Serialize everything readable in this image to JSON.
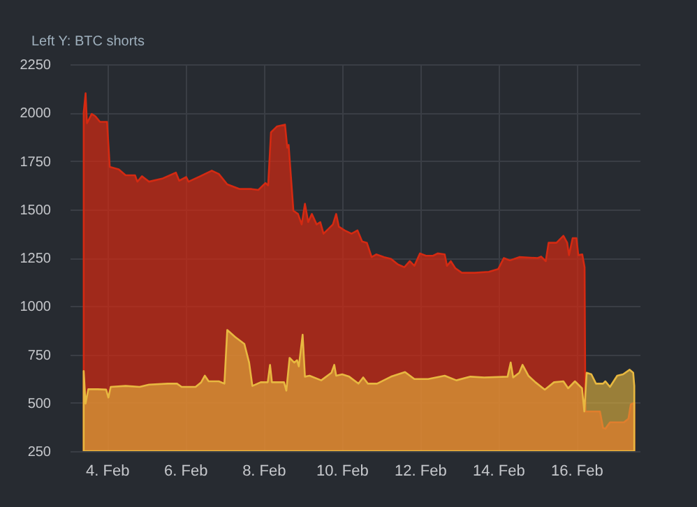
{
  "chart_data": {
    "type": "area",
    "ylabel": "Left Y: BTC shorts",
    "grid": true,
    "xlim": [
      "--02-03T01:10",
      "--02-17T14:50"
    ],
    "xticks": [
      {
        "value": "--02-04",
        "label": "4. Feb"
      },
      {
        "value": "--02-06",
        "label": "6. Feb"
      },
      {
        "value": "--02-08",
        "label": "8. Feb"
      },
      {
        "value": "--02-10",
        "label": "10. Feb"
      },
      {
        "value": "--02-12",
        "label": "12. Feb"
      },
      {
        "value": "--02-14",
        "label": "14. Feb"
      },
      {
        "value": "--02-16",
        "label": "16. Feb"
      }
    ],
    "ylim": [
      250,
      2250
    ],
    "yticks": [
      250,
      500,
      750,
      1000,
      1250,
      1500,
      1750,
      2000,
      2250
    ],
    "series": [
      {
        "color": "#d42a12",
        "x": [
          "--02-03T09:40",
          "--02-03T10:50",
          "--02-03T11:40",
          "--02-03T14:35",
          "--02-03T16:50",
          "--02-03T19:40",
          "--02-04T00:00",
          "--02-04T01:40",
          "--02-04T07:10",
          "--02-04T11:25",
          "--02-04T17:10",
          "--02-04T18:35",
          "--02-04T21:25",
          "--02-05T01:45",
          "--02-05T10:15",
          "--02-05T18:15",
          "--02-05T20:15",
          "--02-06T00:35",
          "--02-06T02:00",
          "--02-06T09:10",
          "--02-06T16:15",
          "--02-06T20:35",
          "--02-07T01:45",
          "--02-07T09:25",
          "--02-07T16:35",
          "--02-07T20:50",
          "--02-08T01:10",
          "--02-08T02:50",
          "--02-08T04:35",
          "--02-08T08:20",
          "--02-08T13:10",
          "--02-08T14:35",
          "--02-08T15:25",
          "--02-08T18:20",
          "--02-08T21:10",
          "--02-08T23:25",
          "--02-09T01:25",
          "--02-09T03:25",
          "--02-09T05:40",
          "--02-09T08:35",
          "--02-09T10:50",
          "--02-09T12:50",
          "--02-09T18:35",
          "--02-09T20:35",
          "--02-09T22:15",
          "--02-10T01:45",
          "--02-10T06:00",
          "--02-10T09:40",
          "--02-10T12:30",
          "--02-10T15:25",
          "--02-10T18:20",
          "--02-10T21:10",
          "--02-11T02:00",
          "--02-11T06:15",
          "--02-11T10:30",
          "--02-11T14:25",
          "--02-11T17:45",
          "--02-11T20:35",
          "--02-12T00:00",
          "--02-12T03:40",
          "--02-12T08:00",
          "--02-12T10:50",
          "--02-12T15:10",
          "--02-12T16:35",
          "--02-12T18:55",
          "--02-12T21:40",
          "--02-13T01:40",
          "--02-13T09:40",
          "--02-13T18:15",
          "--02-14T00:00",
          "--02-14T03:25",
          "--02-14T07:10",
          "--02-14T12:55",
          "--02-15T00:15",
          "--02-15T02:20",
          "--02-15T05:10",
          "--02-15T06:55",
          "--02-15T11:45",
          "--02-15T16:00",
          "--02-15T18:20",
          "--02-15T19:25",
          "--02-15T21:40",
          "--02-16T00:00",
          "--02-16T01:10",
          "--02-16T03:35",
          "--02-16T05:00",
          "--02-16T05:30",
          "--02-16T14:25",
          "--02-16T16:20",
          "--02-16T17:45",
          "--02-16T20:35",
          "--02-17T05:10",
          "--02-17T07:55",
          "--02-17T09:20",
          "--02-17T11:30"
        ],
        "values": [
          2000,
          2100,
          1945,
          1993,
          1981,
          1952,
          1952,
          1719,
          1707,
          1676,
          1676,
          1643,
          1671,
          1643,
          1660,
          1690,
          1648,
          1667,
          1643,
          1671,
          1700,
          1683,
          1629,
          1605,
          1605,
          1600,
          1636,
          1624,
          1898,
          1929,
          1938,
          1819,
          1833,
          1493,
          1476,
          1422,
          1529,
          1434,
          1476,
          1422,
          1434,
          1374,
          1422,
          1476,
          1410,
          1391,
          1374,
          1391,
          1334,
          1327,
          1253,
          1267,
          1253,
          1244,
          1215,
          1201,
          1232,
          1208,
          1272,
          1260,
          1260,
          1272,
          1267,
          1208,
          1232,
          1196,
          1172,
          1172,
          1177,
          1191,
          1248,
          1236,
          1253,
          1248,
          1256,
          1232,
          1327,
          1327,
          1363,
          1327,
          1263,
          1351,
          1351,
          1263,
          1267,
          1200,
          455,
          455,
          370,
          366,
          399,
          399,
          418,
          491,
          500
        ]
      },
      {
        "color": "#e8b840",
        "x": [
          "--02-03T09:40",
          "--02-03T10:50",
          "--02-03T12:30",
          "--02-03T18:15",
          "--02-03T23:25",
          "--02-04T00:50",
          "--02-04T02:15",
          "--02-04T11:25",
          "--02-04T20:00",
          "--02-05T01:45",
          "--02-05T13:10",
          "--02-05T18:55",
          "--02-05T21:45",
          "--02-06T06:20",
          "--02-06T09:45",
          "--02-06T12:00",
          "--02-06T14:20",
          "--02-06T20:35",
          "--02-07T00:00",
          "--02-07T01:45",
          "--02-07T06:35",
          "--02-07T12:15",
          "--02-07T15:10",
          "--02-07T17:10",
          "--02-07T22:15",
          "--02-08T02:35",
          "--02-08T04:00",
          "--02-08T05:10",
          "--02-08T12:35",
          "--02-08T14:00",
          "--02-08T16:00",
          "--02-08T18:50",
          "--02-08T20:35",
          "--02-08T21:40",
          "--02-09T00:00",
          "--02-09T01:25",
          "--02-09T04:15",
          "--02-09T11:25",
          "--02-09T17:40",
          "--02-09T19:25",
          "--02-09T20:35",
          "--02-10T00:15",
          "--02-10T04:35",
          "--02-10T10:15",
          "--02-10T13:10",
          "--02-10T16:00",
          "--02-10T21:40",
          "--02-11T06:15",
          "--02-11T14:50",
          "--02-11T20:35",
          "--02-12T05:05",
          "--02-12T15:10",
          "--02-12T22:20",
          "--02-13T06:55",
          "--02-13T15:25",
          "--02-14T05:45",
          "--02-14T07:40",
          "--02-14T09:10",
          "--02-14T12:55",
          "--02-14T14:55",
          "--02-14T18:30",
          "--02-14T22:50",
          "--02-15T04:35",
          "--02-15T10:15",
          "--02-15T16:00",
          "--02-15T18:55",
          "--02-15T23:05",
          "--02-16T03:25",
          "--02-16T04:50",
          "--02-16T06:15",
          "--02-16T09:10",
          "--02-16T12:00",
          "--02-16T16:20",
          "--02-16T17:45",
          "--02-16T20:35",
          "--02-17T01:00",
          "--02-17T04:35",
          "--02-17T08:40",
          "--02-17T10:50",
          "--02-17T11:30"
        ],
        "values": [
          664,
          496,
          570,
          570,
          568,
          527,
          582,
          587,
          582,
          594,
          599,
          599,
          582,
          582,
          606,
          640,
          611,
          611,
          599,
          876,
          840,
          804,
          708,
          587,
          606,
          606,
          696,
          606,
          606,
          563,
          732,
          708,
          720,
          688,
          852,
          635,
          640,
          616,
          655,
          696,
          640,
          647,
          635,
          599,
          631,
          599,
          599,
          635,
          659,
          623,
          623,
          640,
          616,
          635,
          631,
          635,
          708,
          631,
          655,
          696,
          640,
          606,
          568,
          606,
          611,
          575,
          611,
          575,
          455,
          655,
          647,
          599,
          599,
          611,
          582,
          640,
          647,
          671,
          655,
          587
        ]
      }
    ]
  }
}
